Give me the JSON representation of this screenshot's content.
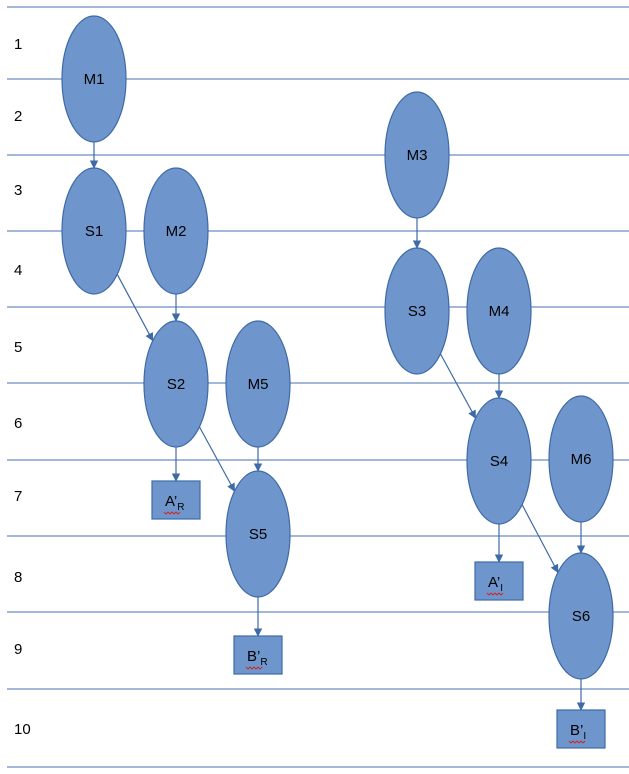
{
  "rows": [
    "1",
    "2",
    "3",
    "4",
    "5",
    "6",
    "7",
    "8",
    "9",
    "10"
  ],
  "nodes": [
    {
      "id": "M1",
      "label": "M1"
    },
    {
      "id": "S1",
      "label": "S1"
    },
    {
      "id": "M2",
      "label": "M2"
    },
    {
      "id": "S2",
      "label": "S2"
    },
    {
      "id": "M5",
      "label": "M5"
    },
    {
      "id": "S5",
      "label": "S5"
    },
    {
      "id": "M3",
      "label": "M3"
    },
    {
      "id": "S3",
      "label": "S3"
    },
    {
      "id": "M4",
      "label": "M4"
    },
    {
      "id": "S4",
      "label": "S4"
    },
    {
      "id": "M6",
      "label": "M6"
    },
    {
      "id": "S6",
      "label": "S6"
    }
  ],
  "boxes": [
    {
      "id": "AR",
      "main": "A’",
      "sub": "R"
    },
    {
      "id": "BR",
      "main": "B’",
      "sub": "R"
    },
    {
      "id": "AI",
      "main": "A’",
      "sub": "I"
    },
    {
      "id": "BI",
      "main": "B’",
      "sub": "I"
    }
  ],
  "edges": [
    {
      "from": "M1",
      "to": "S1"
    },
    {
      "from": "S1",
      "to": "S2"
    },
    {
      "from": "M2",
      "to": "S2"
    },
    {
      "from": "S2",
      "to": "AR"
    },
    {
      "from": "S2",
      "to": "S5"
    },
    {
      "from": "M5",
      "to": "S5"
    },
    {
      "from": "S5",
      "to": "BR"
    },
    {
      "from": "M3",
      "to": "S3"
    },
    {
      "from": "S3",
      "to": "S4"
    },
    {
      "from": "M4",
      "to": "S4"
    },
    {
      "from": "S4",
      "to": "AI"
    },
    {
      "from": "S4",
      "to": "S6"
    },
    {
      "from": "M6",
      "to": "S6"
    },
    {
      "from": "S6",
      "to": "BI"
    }
  ],
  "colors": {
    "node_fill": "#6f96cc",
    "node_stroke": "#3e6aa7",
    "row_line": "#4a6fb0",
    "squiggle": "#d02020"
  }
}
